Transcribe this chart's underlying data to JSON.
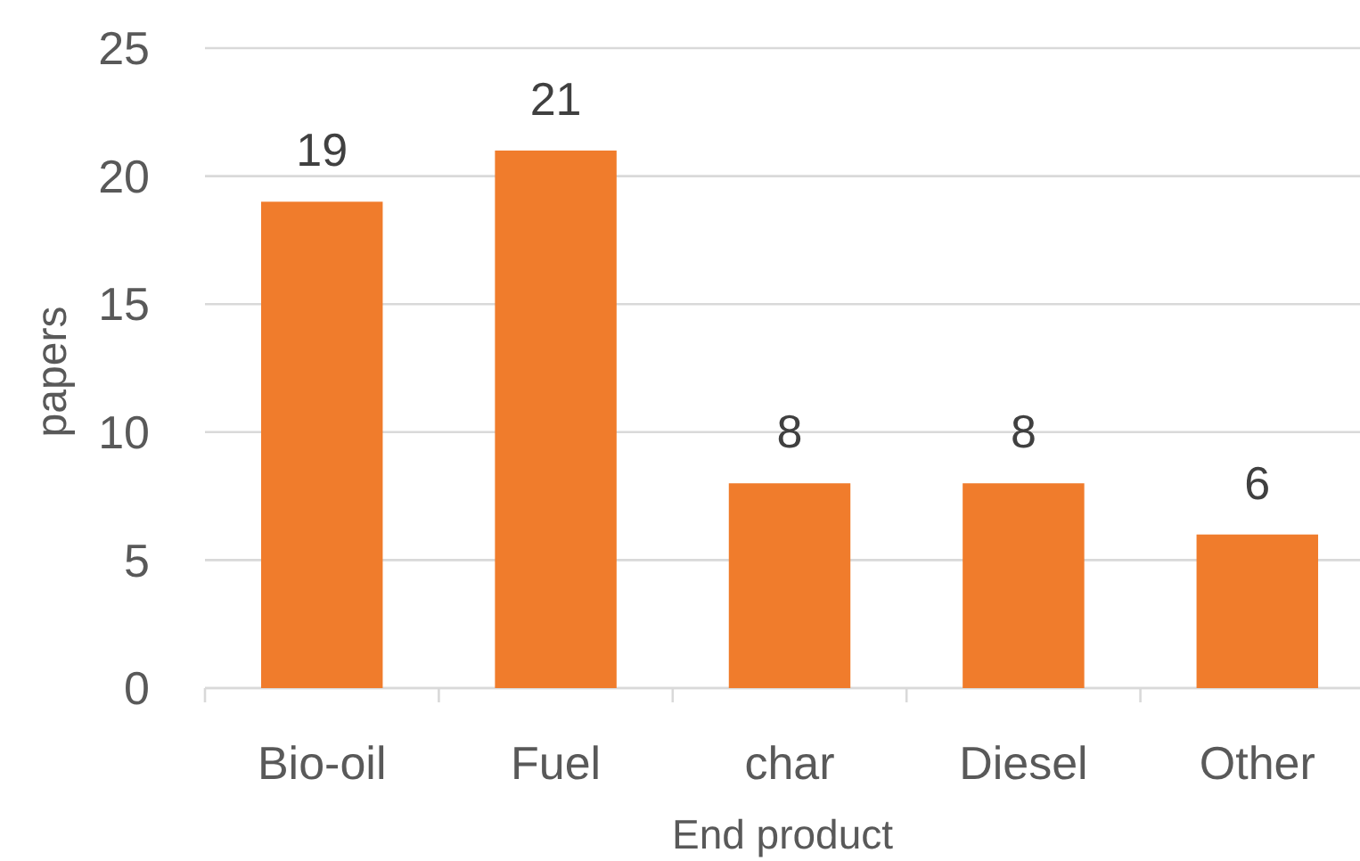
{
  "chart_data": {
    "type": "bar",
    "xlabel": "End product",
    "ylabel": "papers",
    "categories": [
      "Bio-oil",
      "Fuel",
      "char",
      "Diesel",
      "Other"
    ],
    "values": [
      19,
      21,
      8,
      8,
      6
    ],
    "color": "#f07c2c",
    "ylim": [
      0,
      25
    ],
    "yticks": [
      0,
      5,
      10,
      15,
      20,
      25
    ],
    "grid": "y",
    "data_labels": true
  }
}
